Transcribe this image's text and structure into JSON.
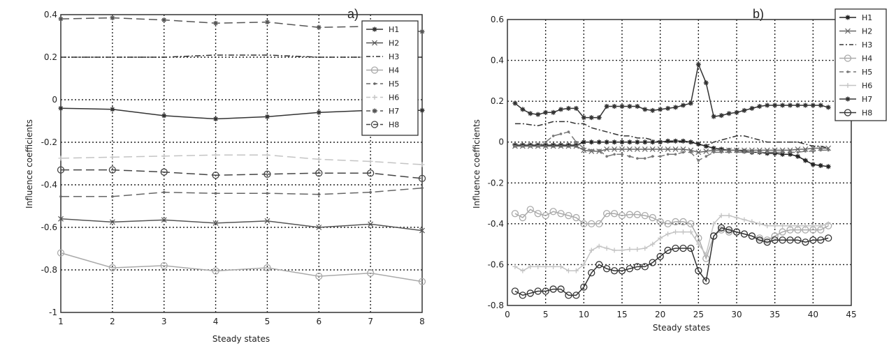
{
  "chart_data": [
    {
      "type": "line",
      "panel_label": "a)",
      "xlabel": "Steady states",
      "ylabel": "Influence coefficients",
      "xlim": [
        1,
        8
      ],
      "ylim": [
        -1,
        0.4
      ],
      "xticks": [
        1,
        2,
        3,
        4,
        5,
        6,
        7,
        8
      ],
      "yticks": [
        -1,
        -0.8,
        -0.6,
        -0.4,
        -0.2,
        0,
        0.2,
        0.4
      ],
      "grid": true,
      "legend": "top-right",
      "x": [
        1,
        2,
        3,
        4,
        5,
        6,
        7,
        8
      ],
      "series": [
        {
          "name": "H1",
          "color": "#333333",
          "dash": "",
          "marker": "star",
          "values": [
            -0.04,
            -0.045,
            -0.075,
            -0.09,
            -0.08,
            -0.06,
            -0.05,
            -0.05
          ]
        },
        {
          "name": "H2",
          "color": "#555555",
          "dash": "",
          "marker": "x",
          "values": [
            -0.56,
            -0.575,
            -0.565,
            -0.58,
            -0.57,
            -0.6,
            -0.585,
            -0.615
          ]
        },
        {
          "name": "H3",
          "color": "#333333",
          "dash": "8 3 2 3",
          "marker": "none",
          "values": [
            0.2,
            0.2,
            0.2,
            0.21,
            0.21,
            0.2,
            0.2,
            0.2
          ]
        },
        {
          "name": "H4",
          "color": "#aaaaaa",
          "dash": "",
          "marker": "circle",
          "values": [
            -0.72,
            -0.79,
            -0.78,
            -0.805,
            -0.79,
            -0.83,
            -0.815,
            -0.855
          ]
        },
        {
          "name": "H5",
          "color": "#666666",
          "dash": "12 6",
          "marker": "point",
          "values": [
            -0.455,
            -0.455,
            -0.435,
            -0.44,
            -0.44,
            -0.445,
            -0.435,
            -0.415
          ]
        },
        {
          "name": "H6",
          "color": "#c4c4c4",
          "dash": "12 6",
          "marker": "plus",
          "values": [
            -0.275,
            -0.27,
            -0.265,
            -0.26,
            -0.26,
            -0.28,
            -0.29,
            -0.305
          ]
        },
        {
          "name": "H7",
          "color": "#555555",
          "dash": "12 6",
          "marker": "star",
          "values": [
            0.38,
            0.385,
            0.375,
            0.36,
            0.365,
            0.34,
            0.345,
            0.32
          ]
        },
        {
          "name": "H8",
          "color": "#444444",
          "dash": "12 6",
          "marker": "circle",
          "values": [
            -0.33,
            -0.33,
            -0.34,
            -0.355,
            -0.35,
            -0.345,
            -0.345,
            -0.37
          ]
        }
      ]
    },
    {
      "type": "line",
      "panel_label": "b)",
      "xlabel": "Steady states",
      "ylabel": "Influence coefficients",
      "xlim": [
        0,
        45
      ],
      "ylim": [
        -0.8,
        0.6
      ],
      "xticks": [
        0,
        5,
        10,
        15,
        20,
        25,
        30,
        35,
        40,
        45
      ],
      "yticks": [
        -0.8,
        -0.6,
        -0.4,
        -0.2,
        0,
        0.2,
        0.4,
        0.6
      ],
      "grid": true,
      "legend": "top-right (outside)",
      "x": [
        1,
        2,
        3,
        4,
        5,
        6,
        7,
        8,
        9,
        10,
        11,
        12,
        13,
        14,
        15,
        16,
        17,
        18,
        19,
        20,
        21,
        22,
        23,
        24,
        25,
        26,
        27,
        28,
        29,
        30,
        31,
        32,
        33,
        34,
        35,
        36,
        37,
        38,
        39,
        40,
        41,
        42
      ],
      "series": [
        {
          "name": "H1",
          "color": "#222222",
          "dash": "",
          "marker": "star",
          "values": [
            -0.015,
            -0.015,
            -0.015,
            -0.015,
            -0.015,
            -0.015,
            -0.015,
            -0.015,
            -0.015,
            0,
            0,
            0,
            0,
            0,
            0,
            0,
            0,
            0,
            0,
            0,
            0.005,
            0.005,
            0.005,
            0,
            -0.01,
            -0.02,
            -0.03,
            -0.035,
            -0.04,
            -0.04,
            -0.045,
            -0.05,
            -0.05,
            -0.055,
            -0.055,
            -0.06,
            -0.06,
            -0.07,
            -0.09,
            -0.11,
            -0.115,
            -0.12
          ]
        },
        {
          "name": "H2",
          "color": "#666666",
          "dash": "",
          "marker": "x",
          "values": [
            -0.02,
            -0.02,
            -0.02,
            -0.02,
            -0.02,
            -0.02,
            -0.02,
            -0.02,
            -0.02,
            -0.04,
            -0.045,
            -0.045,
            -0.035,
            -0.035,
            -0.035,
            -0.035,
            -0.035,
            -0.035,
            -0.035,
            -0.035,
            -0.035,
            -0.035,
            -0.035,
            -0.04,
            -0.05,
            -0.045,
            -0.04,
            -0.04,
            -0.04,
            -0.04,
            -0.04,
            -0.04,
            -0.04,
            -0.04,
            -0.04,
            -0.04,
            -0.04,
            -0.035,
            -0.035,
            -0.03,
            -0.03,
            -0.03
          ]
        },
        {
          "name": "H3",
          "color": "#333333",
          "dash": "8 3 2 3",
          "marker": "none",
          "values": [
            0.09,
            0.09,
            0.085,
            0.08,
            0.09,
            0.1,
            0.1,
            0.1,
            0.09,
            0.09,
            0.07,
            0.06,
            0.05,
            0.04,
            0.03,
            0.03,
            0.02,
            0.02,
            0.01,
            0,
            0,
            0,
            0,
            0,
            -0.01,
            -0.02,
            0,
            0.01,
            0.02,
            0.03,
            0.03,
            0.02,
            0.01,
            0,
            0,
            0,
            0,
            0,
            -0.01,
            -0.02,
            -0.02,
            -0.03
          ]
        },
        {
          "name": "H4",
          "color": "#aaaaaa",
          "dash": "",
          "marker": "circle",
          "values": [
            -0.35,
            -0.37,
            -0.33,
            -0.35,
            -0.36,
            -0.34,
            -0.35,
            -0.36,
            -0.37,
            -0.4,
            -0.4,
            -0.4,
            -0.35,
            -0.35,
            -0.36,
            -0.355,
            -0.355,
            -0.36,
            -0.37,
            -0.39,
            -0.4,
            -0.39,
            -0.39,
            -0.4,
            -0.47,
            -0.57,
            -0.46,
            -0.43,
            -0.44,
            -0.44,
            -0.45,
            -0.46,
            -0.47,
            -0.48,
            -0.46,
            -0.44,
            -0.43,
            -0.43,
            -0.43,
            -0.43,
            -0.43,
            -0.41
          ]
        },
        {
          "name": "H5",
          "color": "#777777",
          "dash": "10 5",
          "marker": "point",
          "values": [
            -0.02,
            -0.02,
            -0.02,
            -0.02,
            0,
            0.03,
            0.04,
            0.05,
            0,
            -0.03,
            -0.04,
            -0.04,
            -0.07,
            -0.06,
            -0.06,
            -0.07,
            -0.08,
            -0.08,
            -0.07,
            -0.07,
            -0.06,
            -0.06,
            -0.05,
            -0.05,
            -0.09,
            -0.07,
            -0.05,
            -0.05,
            -0.05,
            -0.05,
            -0.05,
            -0.05,
            -0.05,
            -0.05,
            -0.05,
            -0.05,
            -0.05,
            -0.05,
            -0.045,
            -0.045,
            -0.04,
            -0.04
          ]
        },
        {
          "name": "H6",
          "color": "#c4c4c4",
          "dash": "",
          "marker": "plus",
          "values": [
            -0.61,
            -0.63,
            -0.61,
            -0.61,
            -0.61,
            -0.61,
            -0.61,
            -0.63,
            -0.63,
            -0.6,
            -0.53,
            -0.51,
            -0.52,
            -0.53,
            -0.53,
            -0.525,
            -0.525,
            -0.52,
            -0.5,
            -0.47,
            -0.45,
            -0.44,
            -0.44,
            -0.44,
            -0.5,
            -0.55,
            -0.4,
            -0.36,
            -0.36,
            -0.37,
            -0.38,
            -0.39,
            -0.4,
            -0.41,
            -0.41,
            -0.41,
            -0.41,
            -0.41,
            -0.41,
            -0.41,
            -0.41,
            -0.4
          ]
        },
        {
          "name": "H7",
          "color": "#333333",
          "dash": "",
          "marker": "star",
          "values": [
            0.19,
            0.16,
            0.14,
            0.135,
            0.145,
            0.145,
            0.16,
            0.165,
            0.165,
            0.12,
            0.12,
            0.12,
            0.175,
            0.175,
            0.175,
            0.175,
            0.175,
            0.16,
            0.155,
            0.16,
            0.165,
            0.17,
            0.18,
            0.19,
            0.38,
            0.29,
            0.125,
            0.13,
            0.14,
            0.145,
            0.155,
            0.165,
            0.175,
            0.18,
            0.18,
            0.18,
            0.18,
            0.18,
            0.18,
            0.18,
            0.18,
            0.17
          ]
        },
        {
          "name": "H8",
          "color": "#333333",
          "dash": "",
          "marker": "circle",
          "values": [
            -0.73,
            -0.75,
            -0.74,
            -0.73,
            -0.73,
            -0.72,
            -0.72,
            -0.75,
            -0.75,
            -0.71,
            -0.64,
            -0.6,
            -0.62,
            -0.63,
            -0.63,
            -0.62,
            -0.61,
            -0.61,
            -0.59,
            -0.56,
            -0.53,
            -0.52,
            -0.52,
            -0.52,
            -0.63,
            -0.68,
            -0.46,
            -0.42,
            -0.43,
            -0.44,
            -0.45,
            -0.46,
            -0.48,
            -0.49,
            -0.48,
            -0.48,
            -0.48,
            -0.48,
            -0.49,
            -0.48,
            -0.48,
            -0.47
          ]
        }
      ]
    }
  ]
}
